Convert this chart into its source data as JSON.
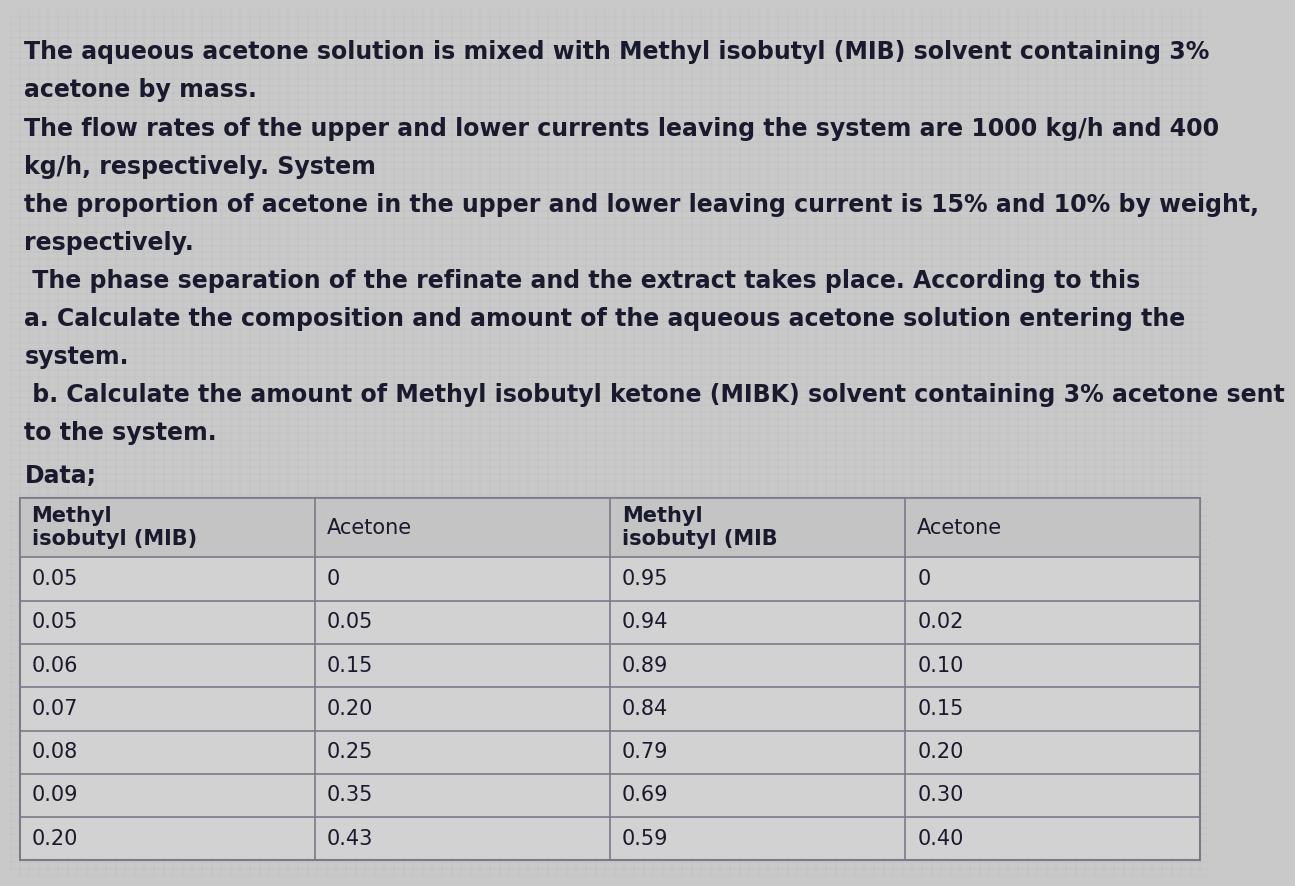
{
  "background_color": "#c9c9c9",
  "grid_color": "#b8b8b8",
  "text_color": "#1a1a2e",
  "paragraph_text": [
    "The aqueous acetone solution is mixed with Methyl isobutyl (MIB) solvent containing 3%",
    "acetone by mass.",
    "The flow rates of the upper and lower currents leaving the system are 1000 kg/h and 400",
    "kg/h, respectively. System",
    "the proportion of acetone in the upper and lower leaving current is 15% and 10% by weight,",
    "respectively.",
    " The phase separation of the refinate and the extract takes place. According to this",
    "a. Calculate the composition and amount of the aqueous acetone solution entering the",
    "system.",
    " b. Calculate the amount of Methyl isobutyl ketone (MIBK) solvent containing 3% acetone sent",
    "to the system."
  ],
  "data_label": "Data;",
  "table_headers": [
    "Methyl\nisobutyl (MIB)",
    "Acetone",
    "Methyl\nisobutyl (MIB",
    "Acetone"
  ],
  "table_col1": [
    "0.05",
    "0.05",
    "0.06",
    "0.07",
    "0.08",
    "0.09",
    "0.20"
  ],
  "table_col2": [
    "0",
    "0.05",
    "0.15",
    "0.20",
    "0.25",
    "0.35",
    "0.43"
  ],
  "table_col3": [
    "0.95",
    "0.94",
    "0.89",
    "0.84",
    "0.79",
    "0.69",
    "0.59"
  ],
  "table_col4": [
    "0",
    "0.02",
    "0.10",
    "0.15",
    "0.20",
    "0.30",
    "0.40"
  ],
  "table_bg": "#d2d2d2",
  "table_header_bg": "#c4c4c4",
  "table_line_color": "#7a7a8a",
  "font_size_text": 17,
  "font_size_table_header": 15,
  "font_size_table_data": 15
}
